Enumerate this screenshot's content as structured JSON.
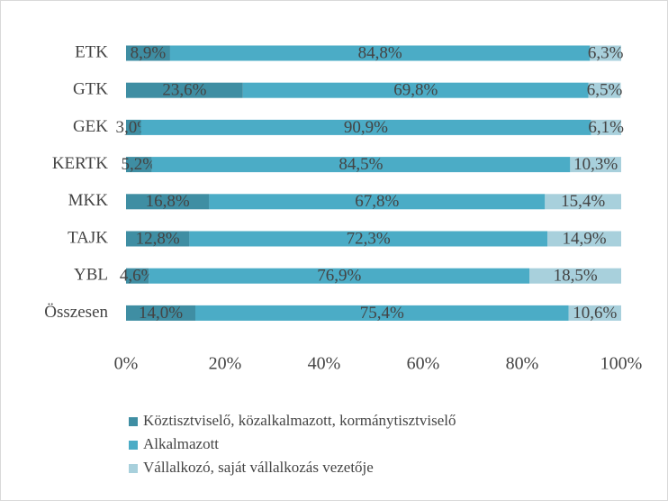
{
  "chart_data": {
    "type": "stacked-bar-horizontal",
    "categories": [
      "ETK",
      "GTK",
      "GEK",
      "KERTK",
      "MKK",
      "TAJK",
      "YBL",
      "Összesen"
    ],
    "series": [
      {
        "name": "Köztisztviselő, közalkalmazott, kormánytisztviselő",
        "color": "#3f8ea3",
        "values": [
          8.9,
          23.6,
          3.0,
          5.2,
          16.8,
          12.8,
          4.6,
          14.0
        ],
        "value_labels": [
          "8,9%",
          "23,6%",
          "3,0%",
          "5,2%",
          "16,8%",
          "12,8%",
          "4,6%",
          "14,0%"
        ]
      },
      {
        "name": "Alkalmazott",
        "color": "#4bacc6",
        "values": [
          84.8,
          69.8,
          90.9,
          84.5,
          67.8,
          72.3,
          76.9,
          75.4
        ],
        "value_labels": [
          "84,8%",
          "69,8%",
          "90,9%",
          "84,5%",
          "67,8%",
          "72,3%",
          "76,9%",
          "75,4%"
        ]
      },
      {
        "name": "Vállalkozó, saját vállalkozás vezetője",
        "color": "#a8d0dc",
        "values": [
          6.3,
          6.5,
          6.1,
          10.3,
          15.4,
          14.9,
          18.5,
          10.6
        ],
        "value_labels": [
          "6,3%",
          "6,5%",
          "6,1%",
          "10,3%",
          "15,4%",
          "14,9%",
          "18,5%",
          "10,6%"
        ]
      }
    ],
    "xlim": [
      0,
      100
    ],
    "xticks": [
      {
        "value": 0,
        "label": "0%"
      },
      {
        "value": 20,
        "label": "20%"
      },
      {
        "value": 40,
        "label": "40%"
      },
      {
        "value": 60,
        "label": "60%"
      },
      {
        "value": 80,
        "label": "80%"
      },
      {
        "value": 100,
        "label": "100%"
      }
    ],
    "grid": false,
    "legend": "bottom"
  }
}
